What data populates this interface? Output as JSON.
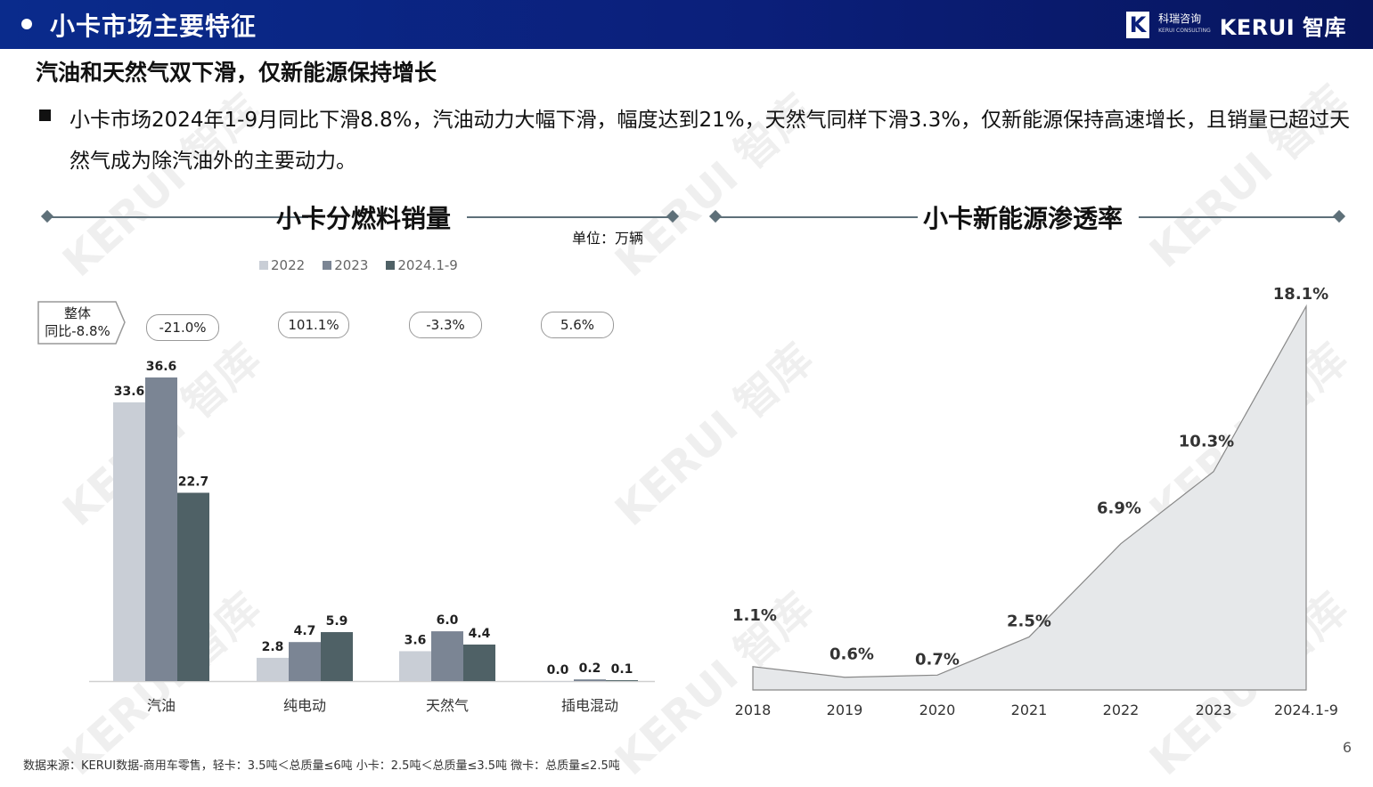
{
  "header": {
    "title": "小卡市场主要特征",
    "logo_cn": "科瑞咨询",
    "logo_brand": "KERUI 智库"
  },
  "subtitle": "汽油和天然气双下滑，仅新能源保持增长",
  "paragraph": "小卡市场2024年1-9月同比下滑8.8%，汽油动力大幅下滑，幅度达到21%，天然气同样下滑3.3%，仅新能源保持高速增长，且销量已超过天然气成为除汽油外的主要动力。",
  "left_section": {
    "title": "小卡分燃料销量",
    "unit": "单位：万辆"
  },
  "right_section": {
    "title": "小卡新能源渗透率"
  },
  "overall": {
    "line1": "整体",
    "line2": "同比-8.8%"
  },
  "yoy": [
    "-21.0%",
    "101.1%",
    "-3.3%",
    "5.6%"
  ],
  "watermark": "KERUI 智库",
  "colors": {
    "s2022": "#c9ced6",
    "s2023": "#7b8594",
    "s2024": "#4f6166",
    "area_fill": "#e6e8ea",
    "area_stroke": "#888888",
    "header": "#0b1f7a"
  },
  "chart_data": [
    {
      "type": "bar",
      "title": "小卡分燃料销量",
      "categories": [
        "汽油",
        "纯电动",
        "天然气",
        "插电混动"
      ],
      "series": [
        {
          "name": "2022",
          "values": [
            33.6,
            2.8,
            3.6,
            0.0
          ]
        },
        {
          "name": "2023",
          "values": [
            36.6,
            4.7,
            6.0,
            0.2
          ]
        },
        {
          "name": "2024.1-9",
          "values": [
            22.7,
            5.9,
            4.4,
            0.1
          ]
        }
      ],
      "ylim": [
        0,
        40
      ],
      "legend": "top"
    },
    {
      "type": "area",
      "title": "小卡新能源渗透率",
      "x": [
        "2018",
        "2019",
        "2020",
        "2021",
        "2022",
        "2023",
        "2024.1-9"
      ],
      "values": [
        1.1,
        0.6,
        0.7,
        2.5,
        6.9,
        10.3,
        18.1
      ],
      "labels": [
        "1.1%",
        "0.6%",
        "0.7%",
        "2.5%",
        "6.9%",
        "10.3%",
        "18.1%"
      ],
      "ylim": [
        0,
        18.1
      ]
    }
  ],
  "footnote": "数据来源：KERUI数据-商用车零售，轻卡：3.5吨＜总质量≤6吨  小卡：2.5吨＜总质量≤3.5吨  微卡：总质量≤2.5吨",
  "page_number": "6"
}
